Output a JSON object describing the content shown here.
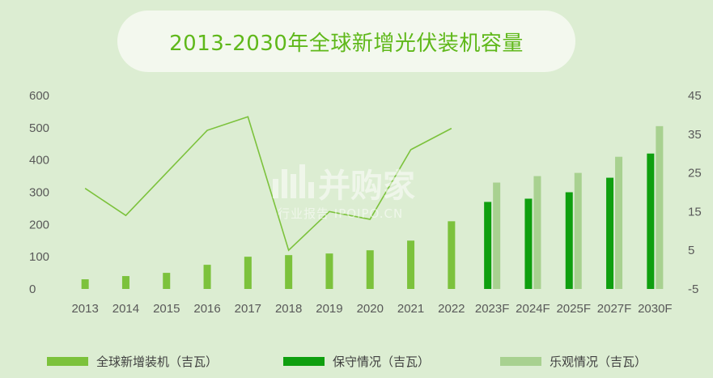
{
  "colors": {
    "background": "#dcedd2",
    "title_pill": "#f3f8ee",
    "title_text": "#5fb81a",
    "series_new": "#7cc23c",
    "series_conservative": "#0f9f0f",
    "series_optimistic": "#a8d190",
    "line": "#7cc23c"
  },
  "watermark": {
    "brand": "并购家",
    "sub": "行业报告 IPOIPO.CN"
  },
  "chart_data": {
    "type": "bar",
    "title": "2013-2030年全球新增光伏装机容量",
    "categories": [
      "2013",
      "2014",
      "2015",
      "2016",
      "2017",
      "2018",
      "2019",
      "2020",
      "2021",
      "2022",
      "2023F",
      "2024F",
      "2025F",
      "2027F",
      "2030F"
    ],
    "ylim": [
      0,
      600
    ],
    "yticks": [
      0,
      100,
      200,
      300,
      400,
      500,
      600
    ],
    "y2lim": [
      -5,
      45
    ],
    "y2ticks": [
      -5,
      5,
      15,
      25,
      35,
      45
    ],
    "grid": false,
    "legend_position": "bottom",
    "series": [
      {
        "name": "全球新增装机（吉瓦）",
        "kind": "bar",
        "axis": "left",
        "values": [
          30,
          40,
          50,
          75,
          100,
          105,
          110,
          120,
          150,
          210,
          null,
          null,
          null,
          null,
          null
        ]
      },
      {
        "name": "保守情况（吉瓦）",
        "kind": "bar",
        "axis": "left",
        "values": [
          null,
          null,
          null,
          null,
          null,
          null,
          null,
          null,
          null,
          null,
          270,
          280,
          300,
          345,
          420
        ]
      },
      {
        "name": "乐观情况（吉瓦）",
        "kind": "bar",
        "axis": "left",
        "values": [
          null,
          null,
          null,
          null,
          null,
          null,
          null,
          null,
          null,
          null,
          330,
          350,
          360,
          410,
          505
        ]
      },
      {
        "kind": "line",
        "axis": "right",
        "values": [
          21,
          14,
          25,
          36,
          39.5,
          5,
          15,
          13,
          31,
          36.5,
          null,
          null,
          null,
          null,
          null
        ]
      }
    ]
  }
}
